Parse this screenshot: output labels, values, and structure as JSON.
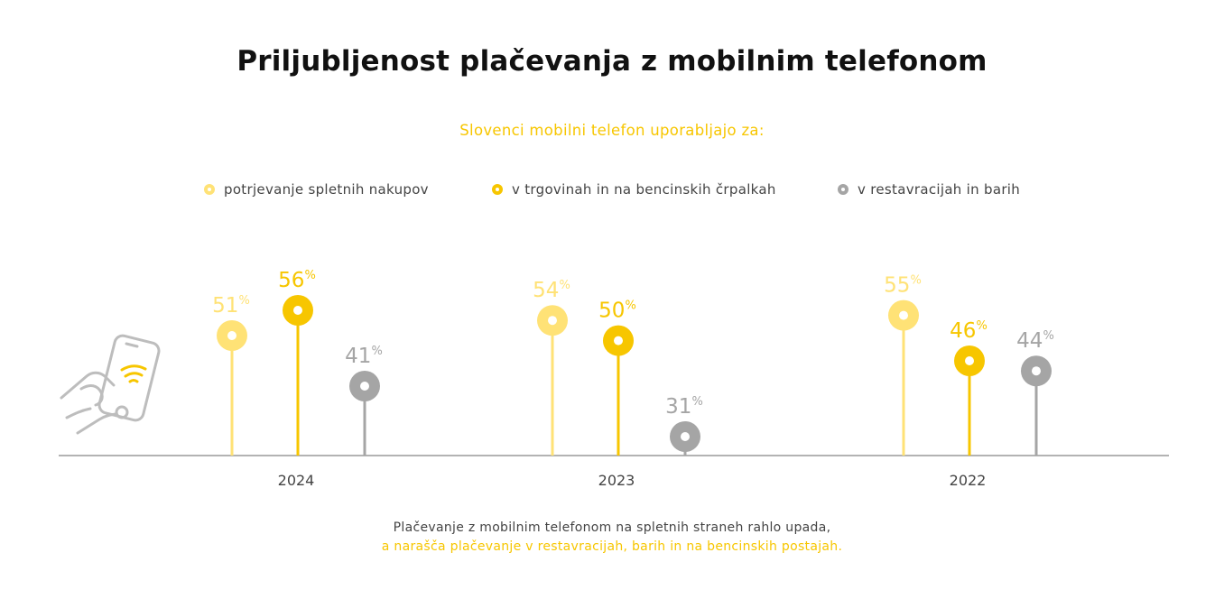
{
  "title": "Priljubljenost plačevanja z mobilnim telefonom",
  "subtitle": "Slovenci mobilni telefon uporabljajo za:",
  "colors": {
    "light_yellow": "#ffe276",
    "yellow": "#f7c600",
    "gray": "#a5a5a5",
    "axis": "#9a9a9a",
    "text": "#444444"
  },
  "chart_data": {
    "type": "scatter",
    "categories": [
      "2024",
      "2023",
      "2022"
    ],
    "unit": "%",
    "series": [
      {
        "name": "potrjevanje spletnih nakupov",
        "values": [
          51,
          54,
          55
        ],
        "color": "#ffe276"
      },
      {
        "name": "v trgovinah in na bencinskih črpalkah",
        "values": [
          56,
          50,
          46
        ],
        "color": "#f7c600"
      },
      {
        "name": "v restavracijah in barih",
        "values": [
          41,
          31,
          44
        ],
        "color": "#a5a5a5"
      }
    ],
    "legend_position": "top"
  },
  "footer": {
    "line1": "Plačevanje z mobilnim telefonom na spletnih straneh rahlo upada,",
    "line2": "a narašča plačevanje v restavracijah, barih in na bencinskih postajah."
  }
}
